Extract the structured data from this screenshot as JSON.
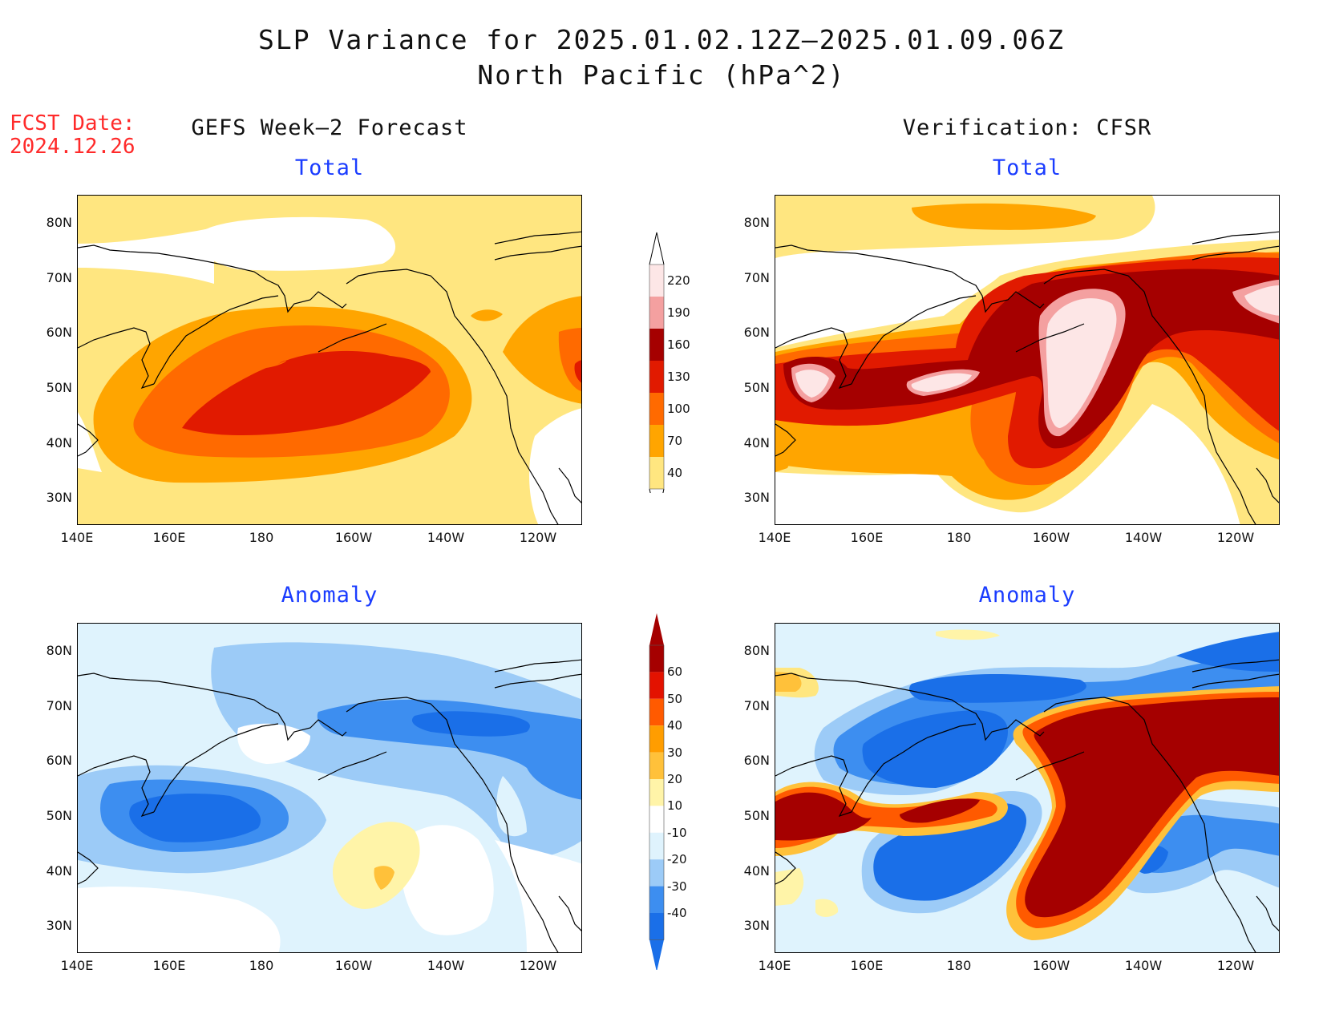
{
  "header": {
    "line1": "SLP Variance for 2025.01.02.12Z–2025.01.09.06Z",
    "line2": "North Pacific (hPa^2)"
  },
  "fcst": {
    "line1": "FCST Date:",
    "line2": "2024.12.26"
  },
  "columns": {
    "left": "GEFS Week–2 Forecast",
    "right": "Verification: CFSR"
  },
  "panels": {
    "total_label": "Total",
    "anomaly_label": "Anomaly"
  },
  "axes": {
    "lat_labels": [
      "80N",
      "70N",
      "60N",
      "50N",
      "40N",
      "30N"
    ],
    "lon_labels": [
      "140E",
      "160E",
      "180",
      "160W",
      "140W",
      "120W"
    ]
  },
  "colorbar_total": {
    "levels": [
      "40",
      "70",
      "100",
      "130",
      "160",
      "190",
      "220"
    ],
    "colors": [
      "#ffe680",
      "#ffa500",
      "#ff6a00",
      "#e11a00",
      "#a50000",
      "#f4a0a0",
      "#fde6e6"
    ]
  },
  "colorbar_anomaly": {
    "levels": [
      "-40",
      "-30",
      "-20",
      "-10",
      "10",
      "20",
      "30",
      "40",
      "50",
      "60"
    ],
    "colors": [
      "#1a6fe8",
      "#3d8ef0",
      "#9ccbf7",
      "#dff3fd",
      "#ffffff",
      "#fff4a8",
      "#ffc13a",
      "#ff9d00",
      "#ff5a00",
      "#e31200",
      "#a50000"
    ]
  }
}
